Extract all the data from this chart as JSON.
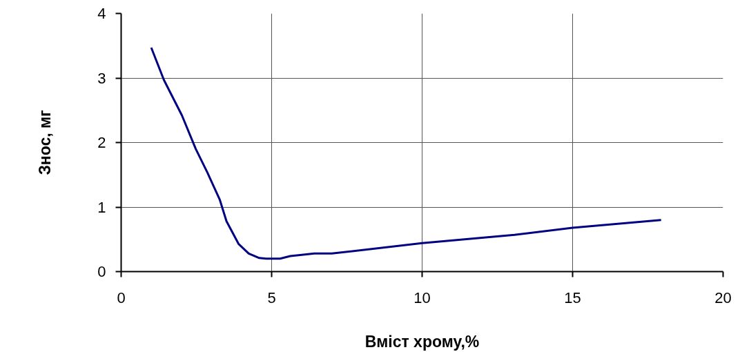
{
  "chart_data": {
    "type": "line",
    "xlabel": "Вміст хрому,%",
    "ylabel": "Знос, мг",
    "xlim": [
      0,
      20
    ],
    "xticks": [
      0,
      5,
      10,
      15,
      20
    ],
    "ylim": [
      0,
      4
    ],
    "yticks": [
      0,
      1,
      2,
      3,
      4
    ],
    "grid": true,
    "marker": "none",
    "line_style": "solid",
    "series": [
      {
        "color": "#000080",
        "x": [
          1,
          1.42,
          2.02,
          2.48,
          2.87,
          3.28,
          3.5,
          3.9,
          4.24,
          4.59,
          4.82,
          5.28,
          5.62,
          6.0,
          6.42,
          7.0,
          10,
          13.07,
          15.0,
          17.94
        ],
        "values": [
          3.47,
          2.97,
          2.42,
          1.9,
          1.53,
          1.11,
          0.78,
          0.43,
          0.28,
          0.21,
          0.2,
          0.2,
          0.24,
          0.26,
          0.28,
          0.28,
          0.44,
          0.57,
          0.68,
          0.8
        ]
      }
    ]
  }
}
